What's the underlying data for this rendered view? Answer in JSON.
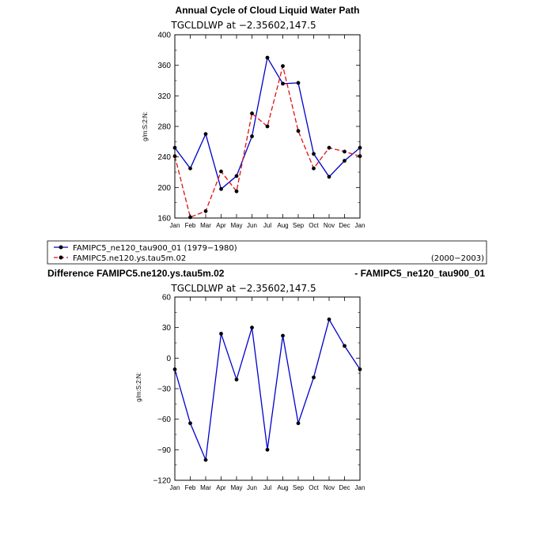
{
  "colors": {
    "series1": "#0000cc",
    "series2": "#dd1111",
    "marker": "#000000",
    "axis": "#000000"
  },
  "chart_data": [
    {
      "type": "line",
      "title": "Annual Cycle of Cloud Liquid Water Path",
      "subtitle": "TGCLDLWP at −2.35602,147.5",
      "ylabel": "g/m:S:2:N:",
      "xlabel": "",
      "categories": [
        "Jan",
        "Feb",
        "Mar",
        "Apr",
        "May",
        "Jun",
        "Jul",
        "Aug",
        "Sep",
        "Oct",
        "Nov",
        "Dec",
        "Jan"
      ],
      "ylim": [
        160,
        400
      ],
      "yticks": [
        160,
        200,
        240,
        280,
        320,
        360,
        400
      ],
      "yticks_labels": [
        "160",
        "200",
        "240",
        "280",
        "320",
        "360",
        "400"
      ],
      "series": [
        {
          "name": "FAMIPC5_ne120_tau900_01",
          "period": "(1979−1980)",
          "style": "solid",
          "values": [
            252,
            225,
            270,
            198,
            215,
            267,
            370,
            336,
            337,
            244,
            214,
            235,
            252
          ]
        },
        {
          "name": "FAMIPC5.ne120.ys.tau5m.02",
          "period": "(2000−2003)",
          "style": "dashed",
          "values": [
            241,
            161,
            169,
            221,
            195,
            297,
            280,
            359,
            274,
            225,
            252,
            247,
            241
          ]
        }
      ]
    },
    {
      "type": "line",
      "title_left": "Difference FAMIPC5.ne120.ys.tau5m.02",
      "title_right": "- FAMIPC5_ne120_tau900_01",
      "subtitle": "TGCLDLWP at −2.35602,147.5",
      "ylabel": "g/m:S:2:N:",
      "xlabel": "",
      "categories": [
        "Jan",
        "Feb",
        "Mar",
        "Apr",
        "May",
        "Jun",
        "Jul",
        "Aug",
        "Sep",
        "Oct",
        "Nov",
        "Dec",
        "Jan"
      ],
      "ylim": [
        -120,
        60
      ],
      "yticks": [
        -120,
        -90,
        -60,
        -30,
        0,
        30,
        60
      ],
      "yticks_labels": [
        "−120",
        "−90",
        "−60",
        "−30",
        "0",
        "30",
        "60"
      ],
      "series": [
        {
          "name": "difference",
          "style": "solid",
          "values": [
            -11,
            -64,
            -100,
            24,
            -21,
            30,
            -90,
            22,
            -64,
            -19,
            38,
            12,
            -11
          ]
        }
      ]
    }
  ],
  "legend": {
    "entry1_label": "FAMIPC5_ne120_tau900_01 (1979−1980)",
    "entry2_label": "FAMIPC5.ne120.ys.tau5m.02",
    "entry2_period": "(2000−2003)"
  }
}
